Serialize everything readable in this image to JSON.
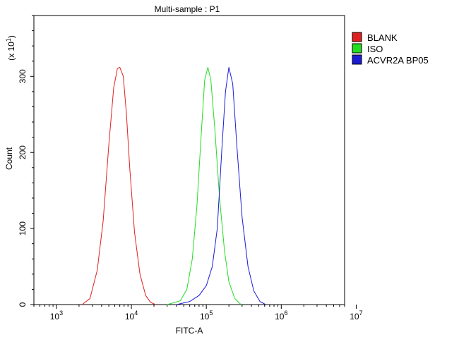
{
  "chart_data": {
    "type": "line",
    "title": "Multi-sample : P1",
    "xlabel": "FITC-A",
    "ylabel": "Count",
    "y_multiplier": "(x 10",
    "y_multiplier_exp": "1",
    "x_scale": "log",
    "xlim": [
      500,
      7000000
    ],
    "ylim": [
      0,
      380
    ],
    "x_ticks": [
      {
        "base": "10",
        "exp": "3"
      },
      {
        "base": "10",
        "exp": "4"
      },
      {
        "base": "10",
        "exp": "5"
      },
      {
        "base": "10",
        "exp": "6"
      },
      {
        "base": "10",
        "exp": "7"
      }
    ],
    "y_ticks": [
      "0",
      "100",
      "200",
      "300"
    ],
    "grid": false,
    "legend_position": "right",
    "series": [
      {
        "name": "BLANK",
        "color": "#e02020",
        "x": [
          2200,
          2800,
          3500,
          4200,
          5000,
          5800,
          6500,
          7000,
          7800,
          8600,
          9500,
          11000,
          13000,
          15500,
          18000,
          21000
        ],
        "y": [
          0,
          8,
          45,
          110,
          210,
          285,
          310,
          312,
          300,
          250,
          180,
          95,
          40,
          12,
          3,
          0
        ]
      },
      {
        "name": "ISO",
        "color": "#22dd22",
        "x": [
          30000,
          45000,
          55000,
          65000,
          75000,
          85000,
          95000,
          105000,
          115000,
          130000,
          150000,
          175000,
          200000,
          240000,
          290000
        ],
        "y": [
          0,
          5,
          20,
          60,
          130,
          220,
          295,
          312,
          295,
          230,
          140,
          70,
          30,
          8,
          0
        ]
      },
      {
        "name": "ACVR2A BP05",
        "color": "#1b1bd6",
        "x": [
          40000,
          60000,
          80000,
          100000,
          120000,
          140000,
          160000,
          180000,
          200000,
          225000,
          255000,
          300000,
          360000,
          430000,
          520000,
          620000
        ],
        "y": [
          0,
          4,
          12,
          25,
          50,
          100,
          200,
          280,
          312,
          290,
          210,
          115,
          50,
          18,
          4,
          0
        ]
      }
    ]
  }
}
